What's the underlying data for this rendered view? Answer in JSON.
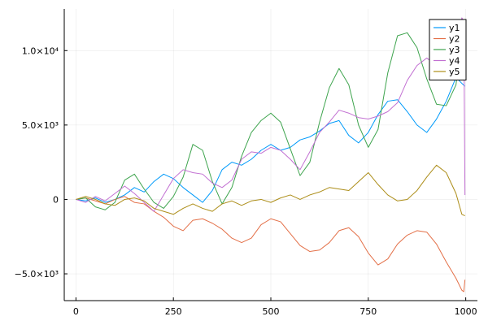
{
  "chart_data": {
    "type": "line",
    "title": "",
    "xlabel": "",
    "ylabel": "",
    "xlim": [
      -30,
      1030
    ],
    "ylim": [
      -6800,
      12800
    ],
    "x_ticks": [
      0,
      250,
      500,
      750,
      1000
    ],
    "x_tick_labels": [
      "0",
      "250",
      "500",
      "750",
      "1000"
    ],
    "y_ticks": [
      -5000,
      0,
      5000,
      10000
    ],
    "y_tick_labels": [
      "−5.0×10³",
      "0",
      "5.0×10³",
      "1.0×10⁴"
    ],
    "grid": true,
    "legend_position": "top-right",
    "series": [
      {
        "name": "y1",
        "color": "#009AFA",
        "points": [
          [
            0,
            0
          ],
          [
            25,
            -100
          ],
          [
            50,
            100
          ],
          [
            75,
            -200
          ],
          [
            100,
            0
          ],
          [
            125,
            300
          ],
          [
            150,
            800
          ],
          [
            175,
            500
          ],
          [
            200,
            1200
          ],
          [
            225,
            1700
          ],
          [
            250,
            1400
          ],
          [
            275,
            800
          ],
          [
            300,
            300
          ],
          [
            325,
            -200
          ],
          [
            350,
            600
          ],
          [
            375,
            2000
          ],
          [
            400,
            2500
          ],
          [
            425,
            2300
          ],
          [
            450,
            2700
          ],
          [
            475,
            3300
          ],
          [
            500,
            3700
          ],
          [
            525,
            3300
          ],
          [
            550,
            3500
          ],
          [
            575,
            4000
          ],
          [
            600,
            4200
          ],
          [
            625,
            4600
          ],
          [
            650,
            5100
          ],
          [
            675,
            5300
          ],
          [
            700,
            4300
          ],
          [
            725,
            3800
          ],
          [
            750,
            4500
          ],
          [
            775,
            5700
          ],
          [
            800,
            6600
          ],
          [
            825,
            6700
          ],
          [
            850,
            5900
          ],
          [
            875,
            5000
          ],
          [
            900,
            4500
          ],
          [
            925,
            5400
          ],
          [
            950,
            6600
          ],
          [
            975,
            8200
          ],
          [
            990,
            7800
          ],
          [
            998,
            7600
          ]
        ]
      },
      {
        "name": "y2",
        "color": "#E36F47",
        "points": [
          [
            0,
            0
          ],
          [
            25,
            100
          ],
          [
            50,
            -100
          ],
          [
            75,
            -300
          ],
          [
            100,
            0
          ],
          [
            125,
            200
          ],
          [
            150,
            -200
          ],
          [
            175,
            -300
          ],
          [
            200,
            -800
          ],
          [
            225,
            -1200
          ],
          [
            250,
            -1800
          ],
          [
            275,
            -2100
          ],
          [
            300,
            -1400
          ],
          [
            325,
            -1300
          ],
          [
            350,
            -1600
          ],
          [
            375,
            -2000
          ],
          [
            400,
            -2600
          ],
          [
            425,
            -2900
          ],
          [
            450,
            -2600
          ],
          [
            475,
            -1700
          ],
          [
            500,
            -1300
          ],
          [
            525,
            -1500
          ],
          [
            550,
            -2300
          ],
          [
            575,
            -3100
          ],
          [
            600,
            -3500
          ],
          [
            625,
            -3400
          ],
          [
            650,
            -2900
          ],
          [
            675,
            -2100
          ],
          [
            700,
            -1900
          ],
          [
            725,
            -2500
          ],
          [
            750,
            -3600
          ],
          [
            775,
            -4400
          ],
          [
            800,
            -4000
          ],
          [
            825,
            -3000
          ],
          [
            850,
            -2400
          ],
          [
            875,
            -2100
          ],
          [
            900,
            -2200
          ],
          [
            925,
            -3000
          ],
          [
            950,
            -4200
          ],
          [
            975,
            -5300
          ],
          [
            990,
            -6100
          ],
          [
            995,
            -6200
          ],
          [
            998,
            -5400
          ]
        ]
      },
      {
        "name": "y3",
        "color": "#3EA44E",
        "points": [
          [
            0,
            0
          ],
          [
            25,
            100
          ],
          [
            50,
            -500
          ],
          [
            75,
            -700
          ],
          [
            100,
            -200
          ],
          [
            125,
            1300
          ],
          [
            150,
            1700
          ],
          [
            175,
            700
          ],
          [
            200,
            -200
          ],
          [
            225,
            -600
          ],
          [
            250,
            200
          ],
          [
            275,
            1500
          ],
          [
            300,
            3700
          ],
          [
            325,
            3300
          ],
          [
            350,
            1200
          ],
          [
            375,
            -300
          ],
          [
            400,
            800
          ],
          [
            425,
            2900
          ],
          [
            450,
            4500
          ],
          [
            475,
            5300
          ],
          [
            500,
            5800
          ],
          [
            525,
            5200
          ],
          [
            550,
            3400
          ],
          [
            575,
            1600
          ],
          [
            600,
            2500
          ],
          [
            625,
            5200
          ],
          [
            650,
            7500
          ],
          [
            675,
            8800
          ],
          [
            700,
            7700
          ],
          [
            725,
            5000
          ],
          [
            750,
            3500
          ],
          [
            775,
            4700
          ],
          [
            800,
            8500
          ],
          [
            825,
            11000
          ],
          [
            850,
            11200
          ],
          [
            875,
            10200
          ],
          [
            900,
            8100
          ],
          [
            925,
            6400
          ],
          [
            950,
            6300
          ],
          [
            975,
            7700
          ],
          [
            990,
            11000
          ],
          [
            998,
            11500
          ]
        ]
      },
      {
        "name": "y4",
        "color": "#C270D2",
        "points": [
          [
            0,
            0
          ],
          [
            25,
            -200
          ],
          [
            50,
            200
          ],
          [
            75,
            -100
          ],
          [
            100,
            400
          ],
          [
            125,
            900
          ],
          [
            150,
            400
          ],
          [
            175,
            -200
          ],
          [
            200,
            -800
          ],
          [
            225,
            300
          ],
          [
            250,
            1400
          ],
          [
            275,
            2000
          ],
          [
            300,
            1800
          ],
          [
            325,
            1700
          ],
          [
            350,
            1100
          ],
          [
            375,
            800
          ],
          [
            400,
            1300
          ],
          [
            425,
            2700
          ],
          [
            450,
            3200
          ],
          [
            475,
            3100
          ],
          [
            500,
            3500
          ],
          [
            525,
            3300
          ],
          [
            550,
            2700
          ],
          [
            575,
            2000
          ],
          [
            600,
            3200
          ],
          [
            625,
            4500
          ],
          [
            650,
            5200
          ],
          [
            675,
            6000
          ],
          [
            700,
            5800
          ],
          [
            725,
            5500
          ],
          [
            750,
            5400
          ],
          [
            775,
            5600
          ],
          [
            800,
            5900
          ],
          [
            825,
            6500
          ],
          [
            850,
            8000
          ],
          [
            875,
            9000
          ],
          [
            900,
            9500
          ],
          [
            925,
            9000
          ],
          [
            950,
            8800
          ],
          [
            975,
            9900
          ],
          [
            990,
            12200
          ],
          [
            995,
            12000
          ],
          [
            998,
            300
          ]
        ]
      },
      {
        "name": "y5",
        "color": "#AC8D18",
        "points": [
          [
            0,
            0
          ],
          [
            25,
            200
          ],
          [
            50,
            0
          ],
          [
            75,
            -300
          ],
          [
            100,
            -400
          ],
          [
            125,
            0
          ],
          [
            150,
            100
          ],
          [
            175,
            -100
          ],
          [
            200,
            -600
          ],
          [
            225,
            -800
          ],
          [
            250,
            -1000
          ],
          [
            275,
            -600
          ],
          [
            300,
            -300
          ],
          [
            325,
            -600
          ],
          [
            350,
            -800
          ],
          [
            375,
            -300
          ],
          [
            400,
            -100
          ],
          [
            425,
            -400
          ],
          [
            450,
            -100
          ],
          [
            475,
            0
          ],
          [
            500,
            -200
          ],
          [
            525,
            100
          ],
          [
            550,
            300
          ],
          [
            575,
            0
          ],
          [
            600,
            300
          ],
          [
            625,
            500
          ],
          [
            650,
            800
          ],
          [
            675,
            700
          ],
          [
            700,
            600
          ],
          [
            725,
            1200
          ],
          [
            750,
            1800
          ],
          [
            775,
            1000
          ],
          [
            800,
            300
          ],
          [
            825,
            -100
          ],
          [
            850,
            0
          ],
          [
            875,
            600
          ],
          [
            900,
            1500
          ],
          [
            925,
            2300
          ],
          [
            950,
            1800
          ],
          [
            975,
            400
          ],
          [
            990,
            -1000
          ],
          [
            998,
            -1100
          ]
        ]
      }
    ]
  }
}
